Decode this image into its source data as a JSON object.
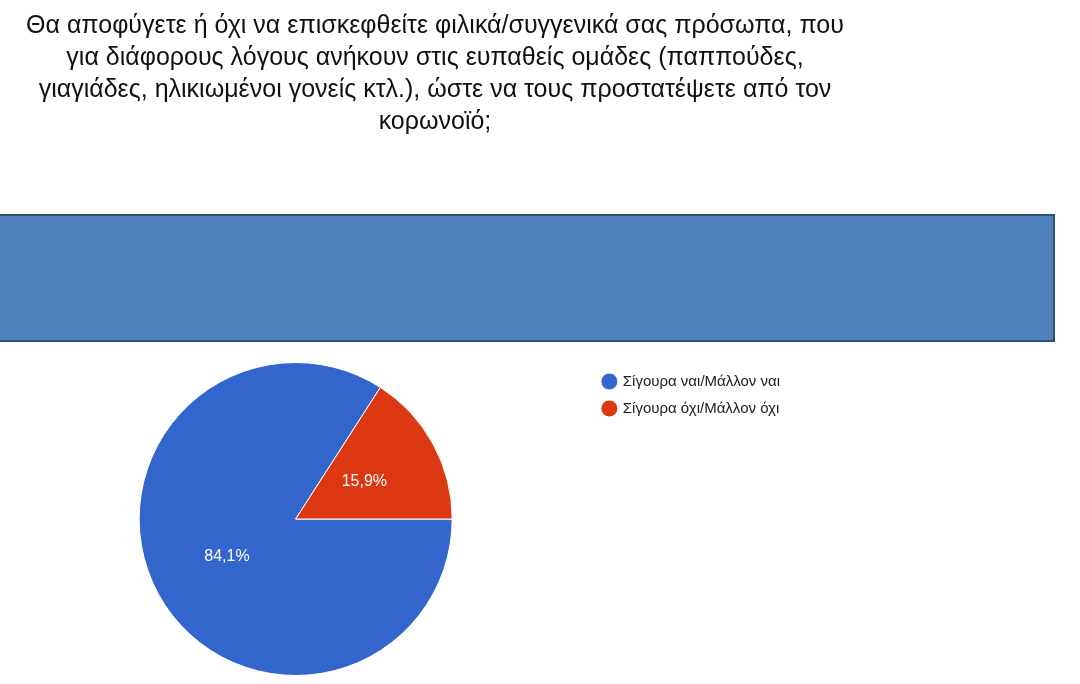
{
  "chart_data": {
    "type": "pie",
    "title": "Θα αποφύγετε ή όχι να επισκεφθείτε φιλικά/συγγενικά σας πρόσωπα, που για διάφορους λόγους ανήκουν στις ευπαθείς ομάδες (παππούδες, γιαγιάδες, ηλικιωμένοι γονείς κτλ.), ώστε να τους προστατέψετε από τον κορωνοϊό;",
    "categories": [
      "Σίγουρα ναι/Μάλλον ναι",
      "Σίγουρα όχι/Μάλλον όχι"
    ],
    "values": [
      84.1,
      15.9
    ],
    "colors": [
      "#3366cc",
      "#dc3912"
    ],
    "value_labels": [
      "84,1%",
      "15,9%"
    ],
    "legend": "top right"
  }
}
